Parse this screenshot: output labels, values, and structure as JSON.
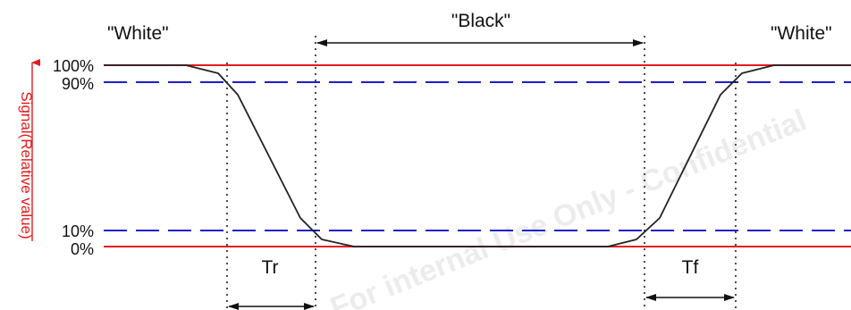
{
  "diagram": {
    "labels": {
      "white_left": "\"White\"",
      "black": "\"Black\"",
      "white_right": "\"White\""
    },
    "levels": {
      "pct_100": "100%",
      "pct_90": "90%",
      "pct_10": "10%",
      "pct_0": "0%"
    },
    "axis_label": "Signal(Relative value)",
    "rise_time_label": "Tr",
    "fall_time_label": "Tf",
    "watermark": "For internal Use Only - Confidential"
  },
  "colors": {
    "threshold_100_0": "#e41c1c",
    "threshold_90_10": "#1d1dcc",
    "signal": "#222222",
    "axis_label": "#e41c1c",
    "watermark": "#d9d9d9"
  }
}
